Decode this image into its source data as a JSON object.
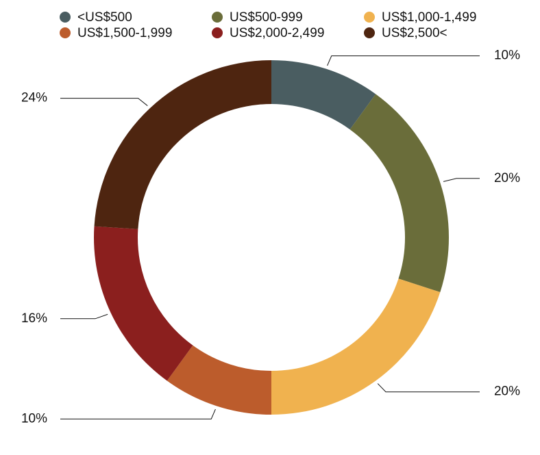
{
  "chart_data": {
    "type": "donut",
    "categories": [
      "<US$500",
      "US$500-999",
      "US$1,000-1,499",
      "US$1,500-1,999",
      "US$2,000-2,499",
      "US$2,500<"
    ],
    "values": [
      10,
      20,
      20,
      10,
      16,
      24
    ],
    "value_labels": [
      "10%",
      "20%",
      "20%",
      "10%",
      "16%",
      "24%"
    ],
    "colors": [
      "#4a5d61",
      "#6a6d3a",
      "#f0b24f",
      "#bc5c2c",
      "#8b1f1e",
      "#4e2510"
    ]
  }
}
